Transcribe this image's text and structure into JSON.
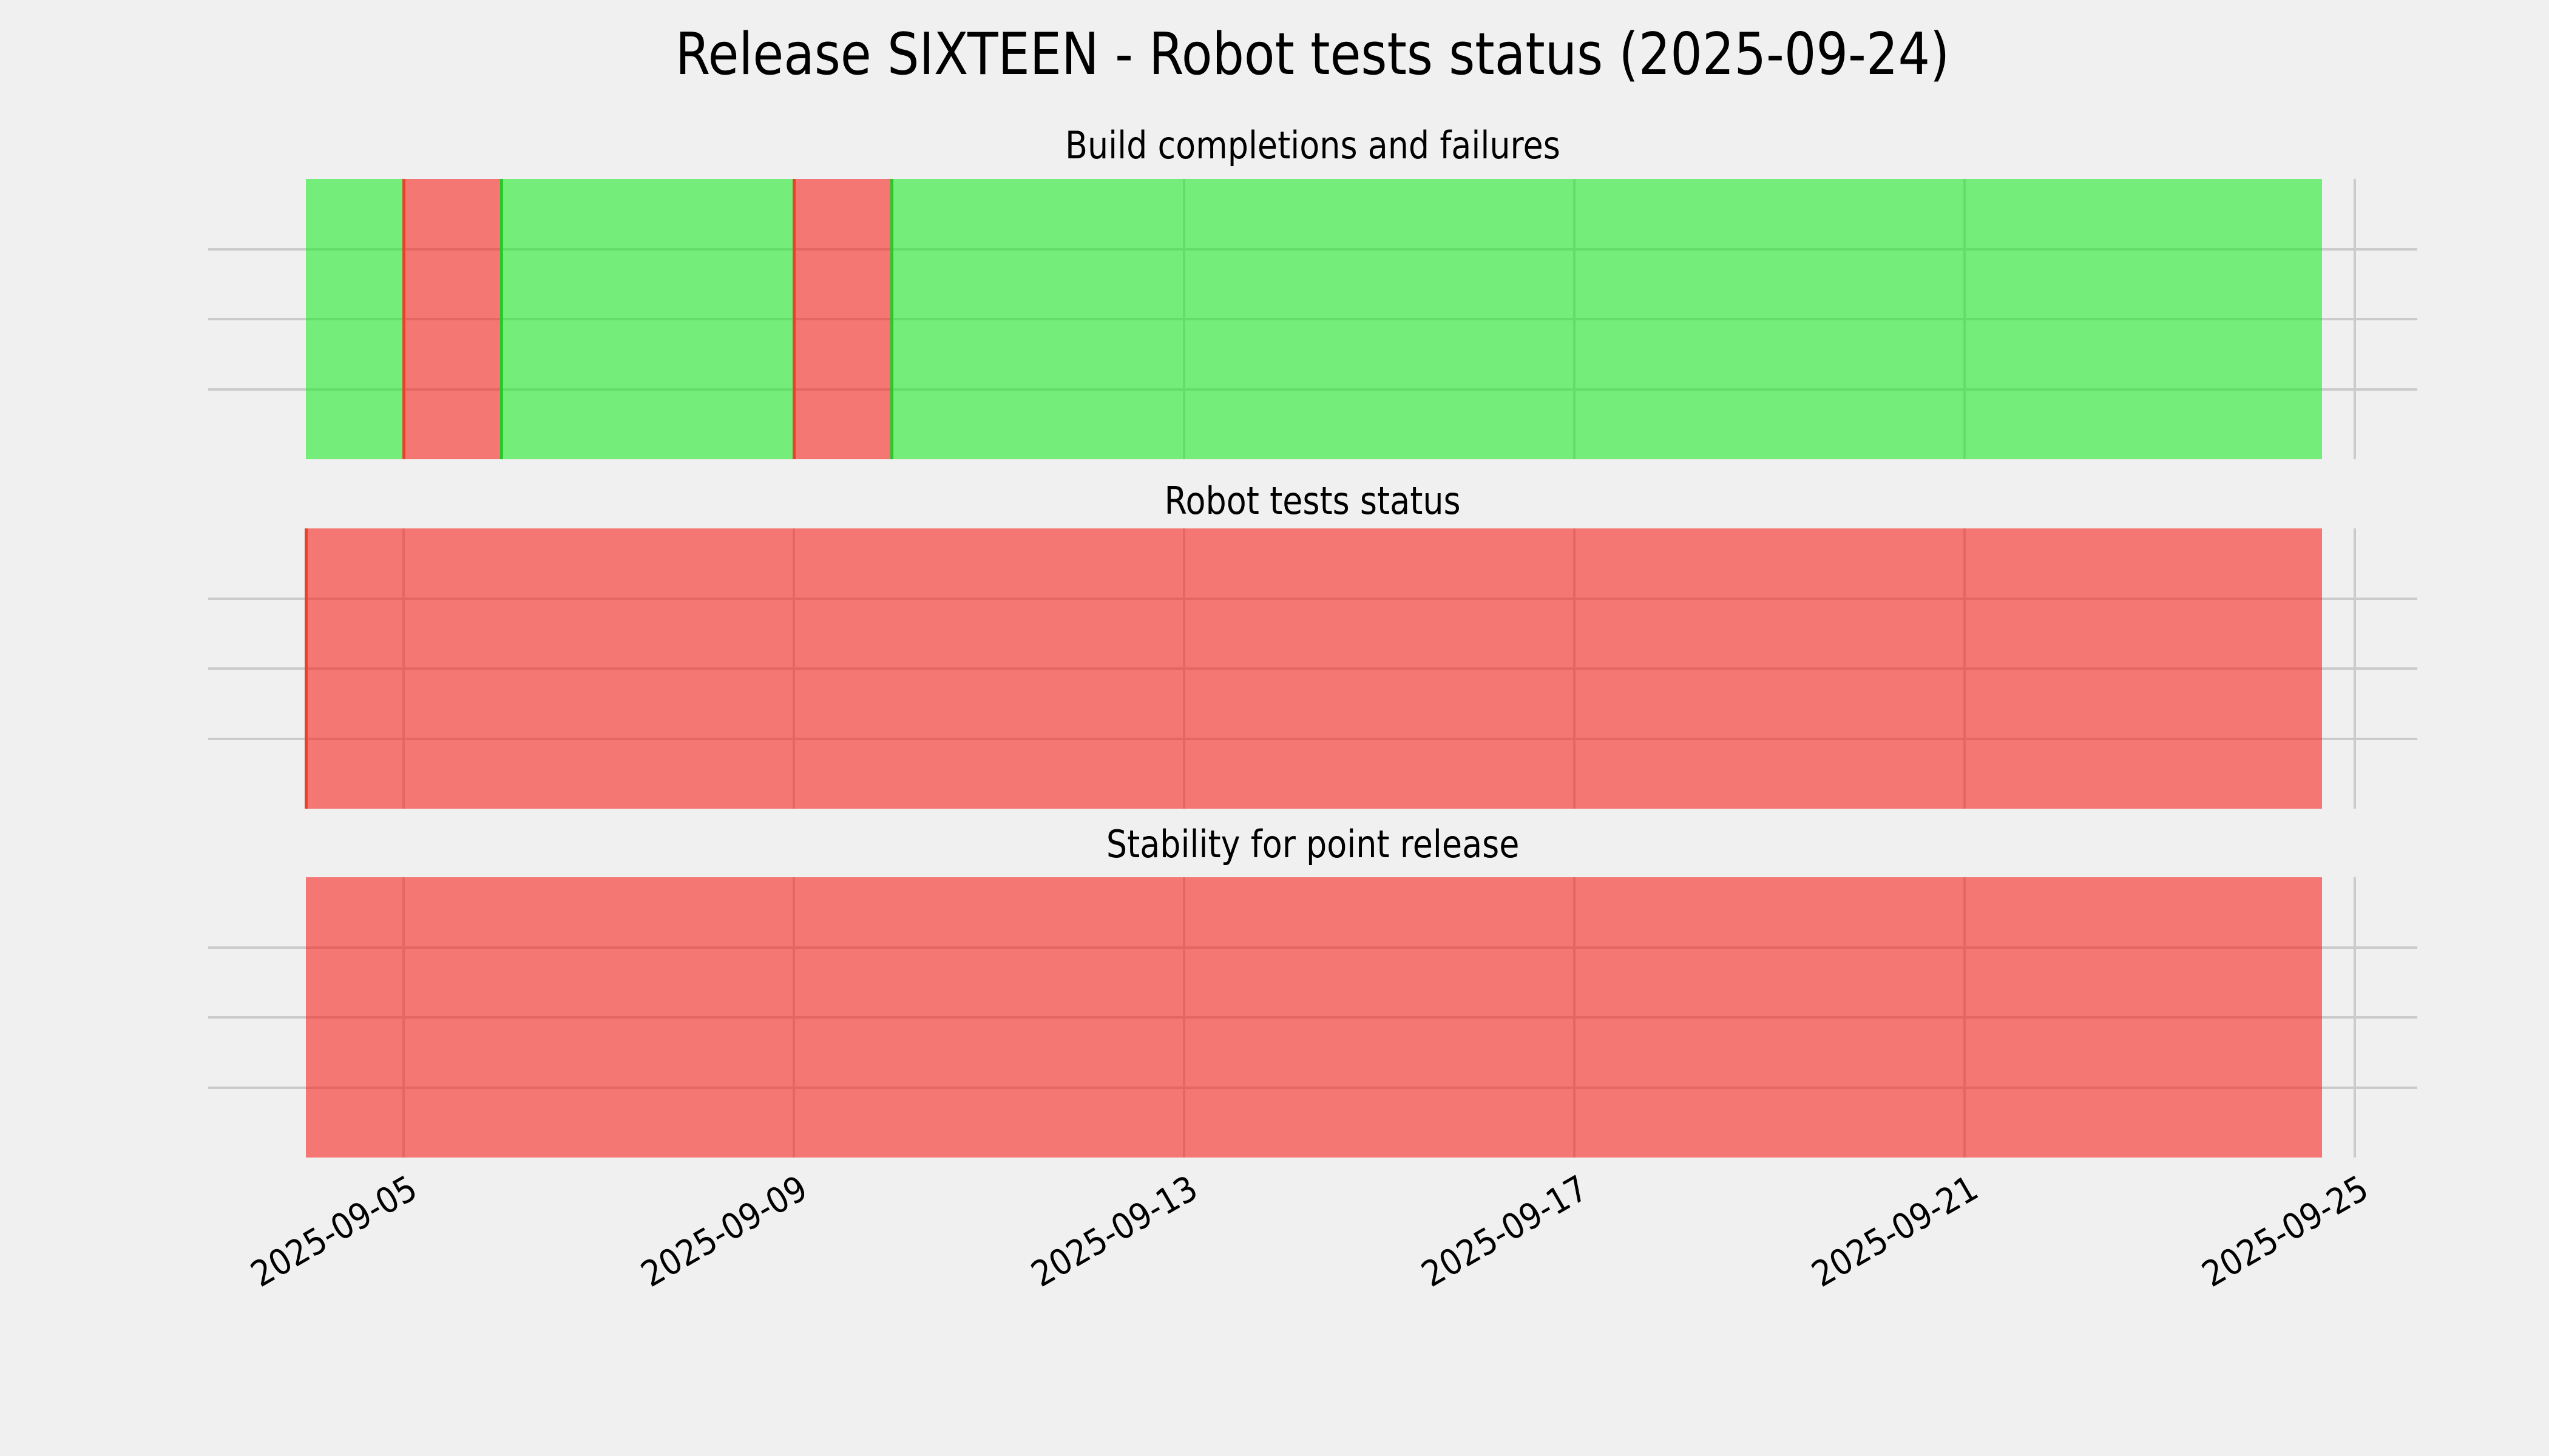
{
  "figure": {
    "title": "Release SIXTEEN - Robot tests status (2025-09-24)",
    "background_color": "#f0f0f0",
    "grid_color": "#cbcbcb",
    "text_color": "#000000"
  },
  "chart_data": {
    "type": "bar",
    "variant": "horizontal-status-timeline",
    "title": "Release SIXTEEN - Robot tests status (2025-09-24)",
    "status_colors": {
      "ok_fill": "rgba(20,235,30,0.56)",
      "fail_fill": "rgba(250,25,20,0.56)",
      "ok_fill_hex_approx": "#75ed7a",
      "fail_fill_hex_approx": "#f57775",
      "ok_event_line": "#2bc82b",
      "fail_event_line": "#e8432a"
    },
    "x_axis": {
      "tick_labels": [
        "2025-09-05",
        "2025-09-09",
        "2025-09-13",
        "2025-09-17",
        "2025-09-21",
        "2025-09-25"
      ],
      "tick_interval_days": 4,
      "data_start": "2025-09-04 00:00",
      "data_end": "2025-09-24 16:00",
      "grid": true,
      "label_rotation_deg": 30
    },
    "y_axis": {
      "tick_labels": [],
      "gridlines_per_panel": 3,
      "grid": true
    },
    "legend": null,
    "panels": [
      {
        "title": "Build completions and failures",
        "segments": [
          {
            "status": "ok",
            "start": "2025-09-04 00:00",
            "end": "2025-09-05 00:00",
            "start_marker": false
          },
          {
            "status": "fail",
            "start": "2025-09-05 00:00",
            "end": "2025-09-06 00:00",
            "start_marker": true
          },
          {
            "status": "ok",
            "start": "2025-09-06 00:00",
            "end": "2025-09-09 00:00",
            "start_marker": true
          },
          {
            "status": "fail",
            "start": "2025-09-09 00:00",
            "end": "2025-09-10 00:00",
            "start_marker": true
          },
          {
            "status": "ok",
            "start": "2025-09-10 00:00",
            "end": "2025-09-24 16:00",
            "start_marker": true
          }
        ]
      },
      {
        "title": "Robot tests status",
        "segments": [
          {
            "status": "fail",
            "start": "2025-09-04 00:00",
            "end": "2025-09-24 16:00",
            "start_marker": true
          }
        ]
      },
      {
        "title": "Stability for point release",
        "segments": [
          {
            "status": "fail",
            "start": "2025-09-04 00:00",
            "end": "2025-09-24 16:00",
            "start_marker": false
          }
        ]
      }
    ]
  }
}
